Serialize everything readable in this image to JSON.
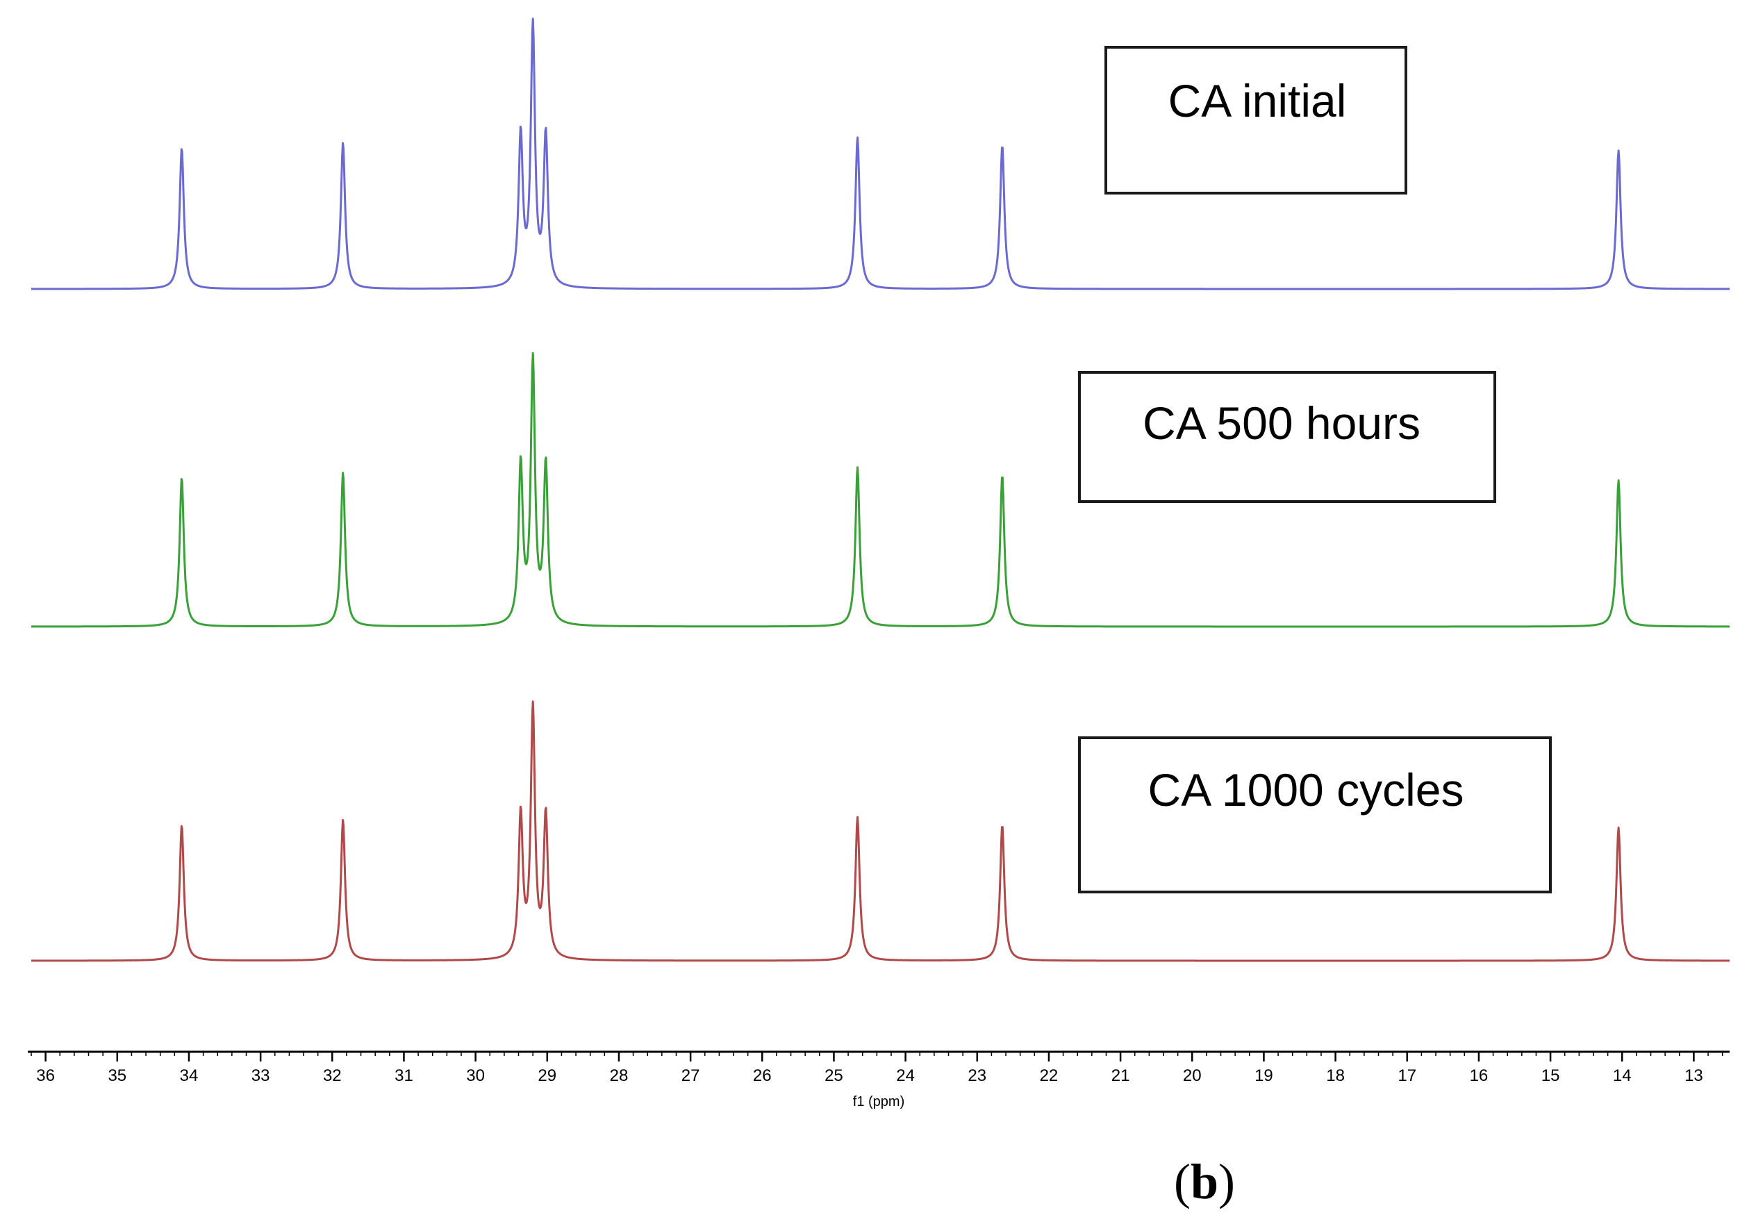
{
  "panel_label": "b",
  "chart_data": {
    "type": "line",
    "title": "",
    "xlabel": "f1 (ppm)",
    "ylabel": "",
    "xlim": [
      36.2,
      12.5
    ],
    "x_reversed": true,
    "ticks": [
      36,
      35,
      34,
      33,
      32,
      31,
      30,
      29,
      28,
      27,
      26,
      25,
      24,
      23,
      22,
      21,
      20,
      19,
      18,
      17,
      16,
      15,
      14,
      13
    ],
    "grid": false,
    "legend_placement": "boxed label above each trace, right of center",
    "linewidth_ppm": 0.035,
    "series": [
      {
        "name": "CA initial",
        "color": "#6a6ad0",
        "peaks": [
          {
            "x": 34.1,
            "h": 0.54
          },
          {
            "x": 31.85,
            "h": 0.56
          },
          {
            "x": 29.37,
            "h": 0.58
          },
          {
            "x": 29.2,
            "h": 0.99
          },
          {
            "x": 29.02,
            "h": 0.58
          },
          {
            "x": 24.67,
            "h": 0.58
          },
          {
            "x": 22.65,
            "h": 0.55
          },
          {
            "x": 14.05,
            "h": 0.53
          }
        ]
      },
      {
        "name": "CA 500 hours",
        "color": "#3aa03a",
        "peaks": [
          {
            "x": 34.1,
            "h": 0.57
          },
          {
            "x": 31.85,
            "h": 0.59
          },
          {
            "x": 29.37,
            "h": 0.61
          },
          {
            "x": 29.2,
            "h": 1.0
          },
          {
            "x": 29.02,
            "h": 0.61
          },
          {
            "x": 24.67,
            "h": 0.61
          },
          {
            "x": 22.65,
            "h": 0.58
          },
          {
            "x": 14.05,
            "h": 0.56
          }
        ]
      },
      {
        "name": "CA 1000 cycles",
        "color": "#b04a4a",
        "peaks": [
          {
            "x": 34.1,
            "h": 0.52
          },
          {
            "x": 31.85,
            "h": 0.54
          },
          {
            "x": 29.37,
            "h": 0.55
          },
          {
            "x": 29.2,
            "h": 0.95
          },
          {
            "x": 29.02,
            "h": 0.55
          },
          {
            "x": 24.67,
            "h": 0.55
          },
          {
            "x": 22.65,
            "h": 0.52
          },
          {
            "x": 14.05,
            "h": 0.51
          }
        ]
      }
    ]
  }
}
